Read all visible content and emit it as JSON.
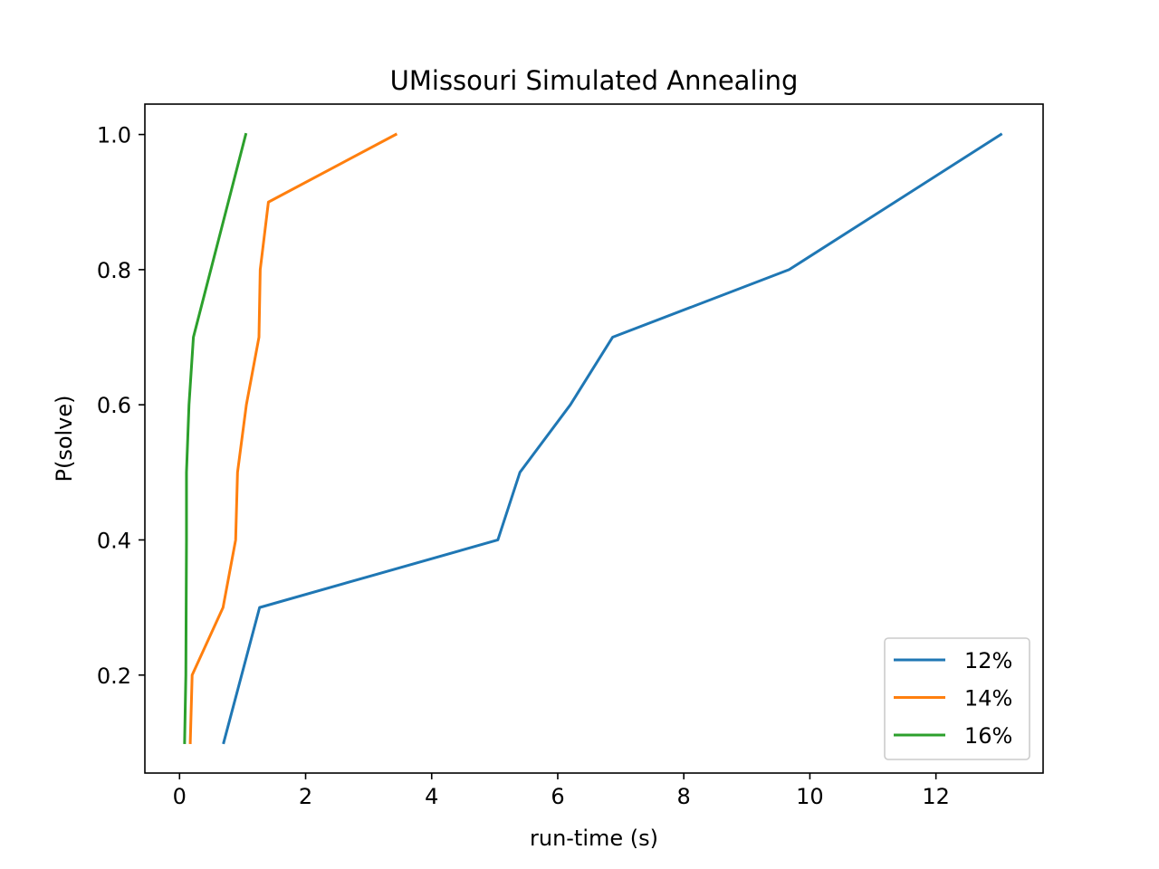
{
  "chart_data": {
    "type": "line",
    "title": "UMissouri Simulated Annealing",
    "xlabel": "run-time (s)",
    "ylabel": "P(solve)",
    "xlim": [
      -0.55,
      13.7
    ],
    "ylim": [
      0.055,
      1.045
    ],
    "xticks": [
      0,
      2,
      4,
      6,
      8,
      10,
      12
    ],
    "xtick_labels": [
      "0",
      "2",
      "4",
      "6",
      "8",
      "10",
      "12"
    ],
    "yticks": [
      0.2,
      0.4,
      0.6,
      0.8,
      1.0
    ],
    "ytick_labels": [
      "0.2",
      "0.4",
      "0.6",
      "0.8",
      "1.0"
    ],
    "grid": false,
    "legend_position": "bottom-right",
    "series": [
      {
        "name": "12%",
        "color": "#1f77b4",
        "x": [
          0.7,
          1.27,
          5.05,
          5.4,
          6.2,
          6.87,
          9.67,
          13.03
        ],
        "y": [
          0.1,
          0.3,
          0.4,
          0.5,
          0.6,
          0.7,
          0.8,
          1.0
        ]
      },
      {
        "name": "14%",
        "color": "#ff7f0e",
        "x": [
          0.17,
          0.2,
          0.69,
          0.89,
          0.92,
          1.06,
          1.26,
          1.28,
          1.41,
          3.43
        ],
        "y": [
          0.1,
          0.2,
          0.3,
          0.4,
          0.5,
          0.6,
          0.7,
          0.8,
          0.9,
          1.0
        ]
      },
      {
        "name": "16%",
        "color": "#2ca02c",
        "x": [
          0.08,
          0.1,
          0.11,
          0.11,
          0.15,
          0.22,
          1.05
        ],
        "y": [
          0.1,
          0.2,
          0.4,
          0.5,
          0.6,
          0.7,
          1.0
        ]
      }
    ]
  }
}
